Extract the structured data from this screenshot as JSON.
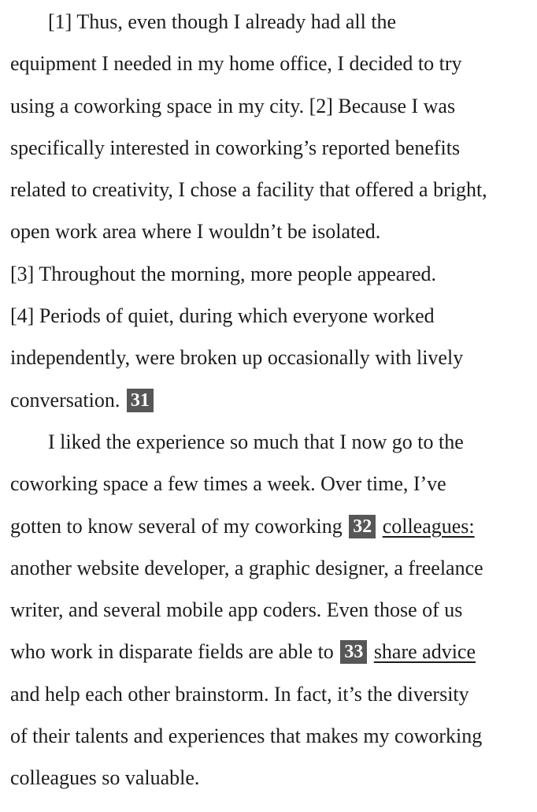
{
  "passage": {
    "para1": {
      "line1": "[1] Thus, even though I already had all the",
      "line2": "equipment I needed in my home office, I decided to try",
      "line3": "using a coworking space in my city. [2] Because I was",
      "line4": "specifically interested in coworking’s reported benefits",
      "line5": "related to creativity, I chose a facility that offered a bright,",
      "line6": "open work area where I wouldn’t be isolated.",
      "line7": "[3] Throughout the morning, more people appeared.",
      "line8": "[4] Periods of quiet, during which everyone worked",
      "line9": "independently, were broken up occasionally with lively",
      "line10": "conversation.",
      "q31": "31"
    },
    "para2": {
      "line1": "I liked the experience so much that I now go to the",
      "line2": "coworking space a few times a week. Over time, I’ve",
      "line3_before": "gotten to know several of my coworking",
      "q32": "32",
      "line3_underlined": "colleagues:",
      "line4": "another website developer, a graphic designer, a freelance",
      "line5": "writer, and several mobile app coders. Even those of us",
      "line6_before": "who work in disparate fields are able to",
      "q33": "33",
      "line6_underlined": "share advice",
      "line7": "and help each other brainstorm. In fact, it’s the diversity",
      "line8": "of their talents and experiences that makes my coworking",
      "line9": "colleagues so valuable."
    }
  }
}
